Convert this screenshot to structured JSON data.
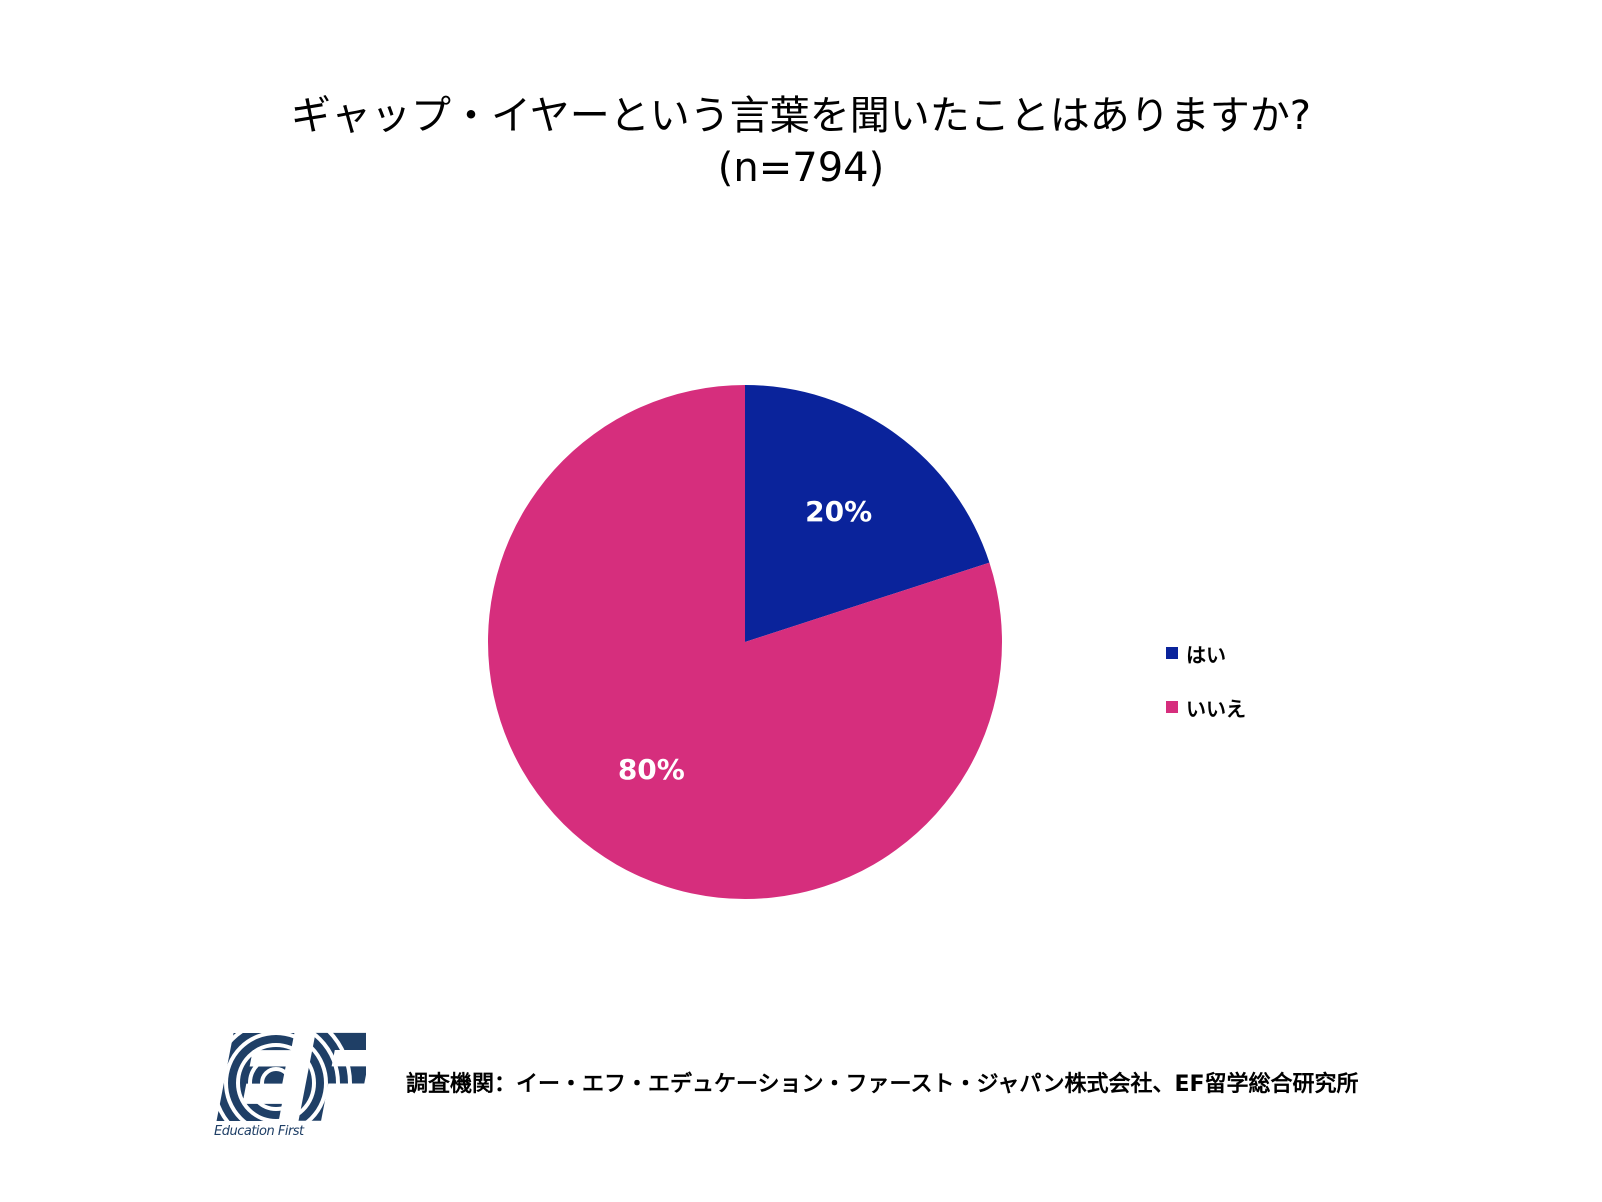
{
  "title": "ギャップ・イヤーという言葉を聞いたことはありますか?",
  "subtitle": "(n=794)",
  "colors": {
    "yes": "#0a239b",
    "no": "#d62e7d",
    "logo": "#1f3f66"
  },
  "chart_data": {
    "type": "pie",
    "title": "ギャップ・イヤーという言葉を聞いたことはありますか?",
    "subtitle": "(n=794)",
    "categories": [
      "はい",
      "いいえ"
    ],
    "values": [
      20,
      80
    ],
    "data_labels": [
      "20%",
      "80%"
    ],
    "legend_placement": "right",
    "start_angle": "12 o'clock",
    "direction": "clockwise"
  },
  "legend": {
    "items": [
      {
        "label": "はい"
      },
      {
        "label": "いいえ"
      }
    ]
  },
  "footer": {
    "source": "調査機関：イー・エフ・エデュケーション・ファースト・ジャパン株式会社、EF留学総合研究所"
  },
  "logo": {
    "text": "EF",
    "subtext": "Education First"
  }
}
